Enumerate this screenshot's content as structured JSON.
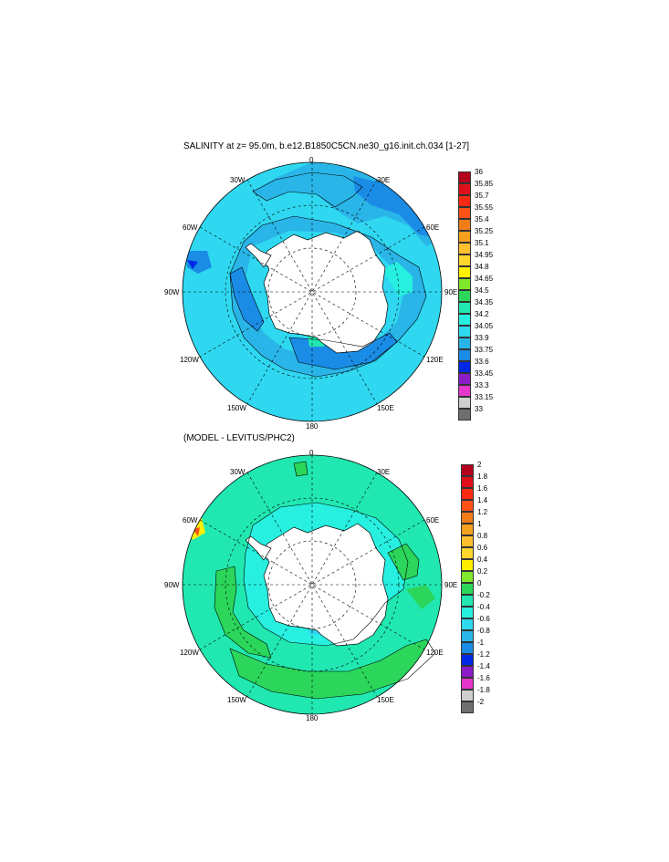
{
  "panel1": {
    "title": "SALINITY at z=  95.0m, b.e12.B1850C5CN.ne30_g16.init.ch.034 [1-27]",
    "lon_labels": {
      "top": "0",
      "top_right": "30E",
      "right_upper": "60E",
      "right": "90E",
      "right_lower": "120E",
      "bottom_right": "150E",
      "bottom": "180",
      "bottom_left": "150W",
      "left_lower": "120W",
      "left": "90W",
      "left_upper": "60W",
      "top_left": "30W"
    },
    "colorbar": {
      "labels": [
        "36",
        "35.85",
        "35.7",
        "35.55",
        "35.4",
        "35.25",
        "35.1",
        "34.95",
        "34.8",
        "34.65",
        "34.5",
        "34.35",
        "34.2",
        "34.05",
        "33.9",
        "33.75",
        "33.6",
        "33.45",
        "33.3",
        "33.15",
        "33"
      ],
      "colors": [
        "#b4001c",
        "#e0101a",
        "#ff2a14",
        "#ff5218",
        "#f07c1a",
        "#f5a01f",
        "#ffbf2e",
        "#ffd62c",
        "#fff000",
        "#7fe82a",
        "#2bd65a",
        "#21e8b0",
        "#27f0e0",
        "#2fd8f0",
        "#2ab5e8",
        "#1a8ce6",
        "#0028e6",
        "#8c1cc8",
        "#e436cc",
        "#cfcfcf",
        "#6f6f6f"
      ]
    }
  },
  "panel2": {
    "title": "(MODEL - LEVITUS/PHC2)",
    "lon_labels": {
      "top": "0",
      "top_right": "30E",
      "right_upper": "60E",
      "right": "90E",
      "right_lower": "120E",
      "bottom_right": "150E",
      "bottom": "180",
      "bottom_left": "150W",
      "left_lower": "120W",
      "left": "90W",
      "left_upper": "60W",
      "top_left": "30W"
    },
    "colorbar": {
      "labels": [
        "2",
        "1.8",
        "1.6",
        "1.4",
        "1.2",
        "1",
        "0.8",
        "0.6",
        "0.4",
        "0.2",
        "0",
        "-0.2",
        "-0.4",
        "-0.6",
        "-0.8",
        "-1",
        "-1.2",
        "-1.4",
        "-1.6",
        "-1.8",
        "-2"
      ],
      "colors": [
        "#b4001c",
        "#e0101a",
        "#ff2a14",
        "#ff5218",
        "#f07c1a",
        "#f5a01f",
        "#ffbf2e",
        "#ffd62c",
        "#fff000",
        "#7fe82a",
        "#2bd65a",
        "#21e8b0",
        "#27f0e0",
        "#2fd8f0",
        "#2ab5e8",
        "#1a8ce6",
        "#0028e6",
        "#8c1cc8",
        "#e436cc",
        "#cfcfcf",
        "#6f6f6f"
      ]
    }
  }
}
